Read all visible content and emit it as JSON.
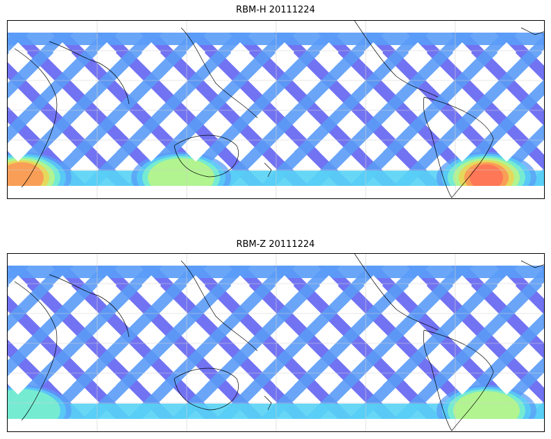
{
  "panels": [
    {
      "title": "RBM-H 20111224",
      "band_colors": [
        "#6b6cf2",
        "#5a9cf7",
        "#58d3f5",
        "#7ff7c6",
        "#c6f77a",
        "#f7d04a",
        "#ff8a55",
        "#ff6a55"
      ],
      "hot_zones": [
        {
          "where": "south-west",
          "level": 6
        },
        {
          "where": "south-mid",
          "level": 4
        },
        {
          "where": "south-east",
          "level": 7
        }
      ]
    },
    {
      "title": "RBM-Z 20111224",
      "band_colors": [
        "#6b6cf2",
        "#5a9cf7",
        "#58d3f5",
        "#7ff7c6",
        "#c6f77a"
      ],
      "hot_zones": [
        {
          "where": "south-west",
          "level": 3
        },
        {
          "where": "south-east",
          "level": 4
        }
      ]
    }
  ],
  "colors": {
    "grid": "#cfcfcf",
    "coast": "#000000",
    "frame": "#000000"
  }
}
